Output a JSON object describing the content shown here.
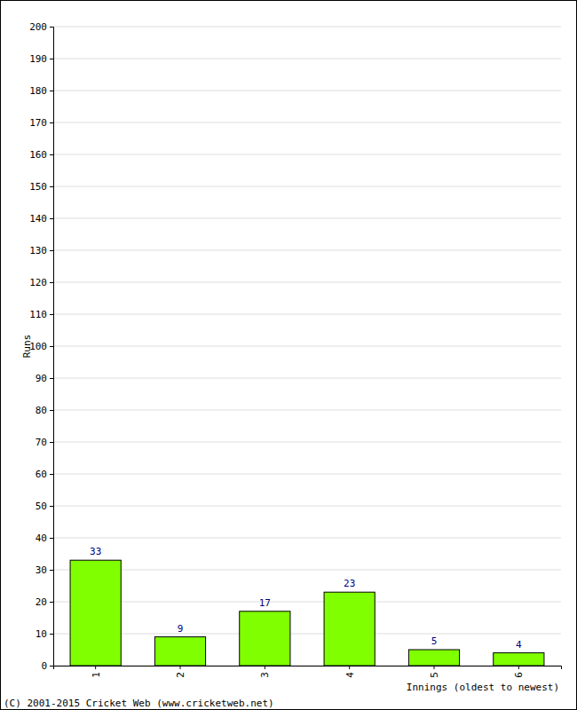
{
  "chart_data": {
    "type": "bar",
    "categories": [
      "1",
      "2",
      "3",
      "4",
      "5",
      "6"
    ],
    "values": [
      33,
      9,
      17,
      23,
      5,
      4
    ],
    "color": "#80ff00",
    "ylim": [
      0,
      200
    ],
    "yticks": [
      0,
      10,
      20,
      30,
      40,
      50,
      60,
      70,
      80,
      90,
      100,
      110,
      120,
      130,
      140,
      150,
      160,
      170,
      180,
      190,
      200
    ],
    "grid": true,
    "data_labels": true,
    "x_label": "Innings (oldest to newest)",
    "y_label": "Runs",
    "annotations": [
      "(C) 2001-2015 Cricket Web (www.cricketweb.net)"
    ]
  }
}
